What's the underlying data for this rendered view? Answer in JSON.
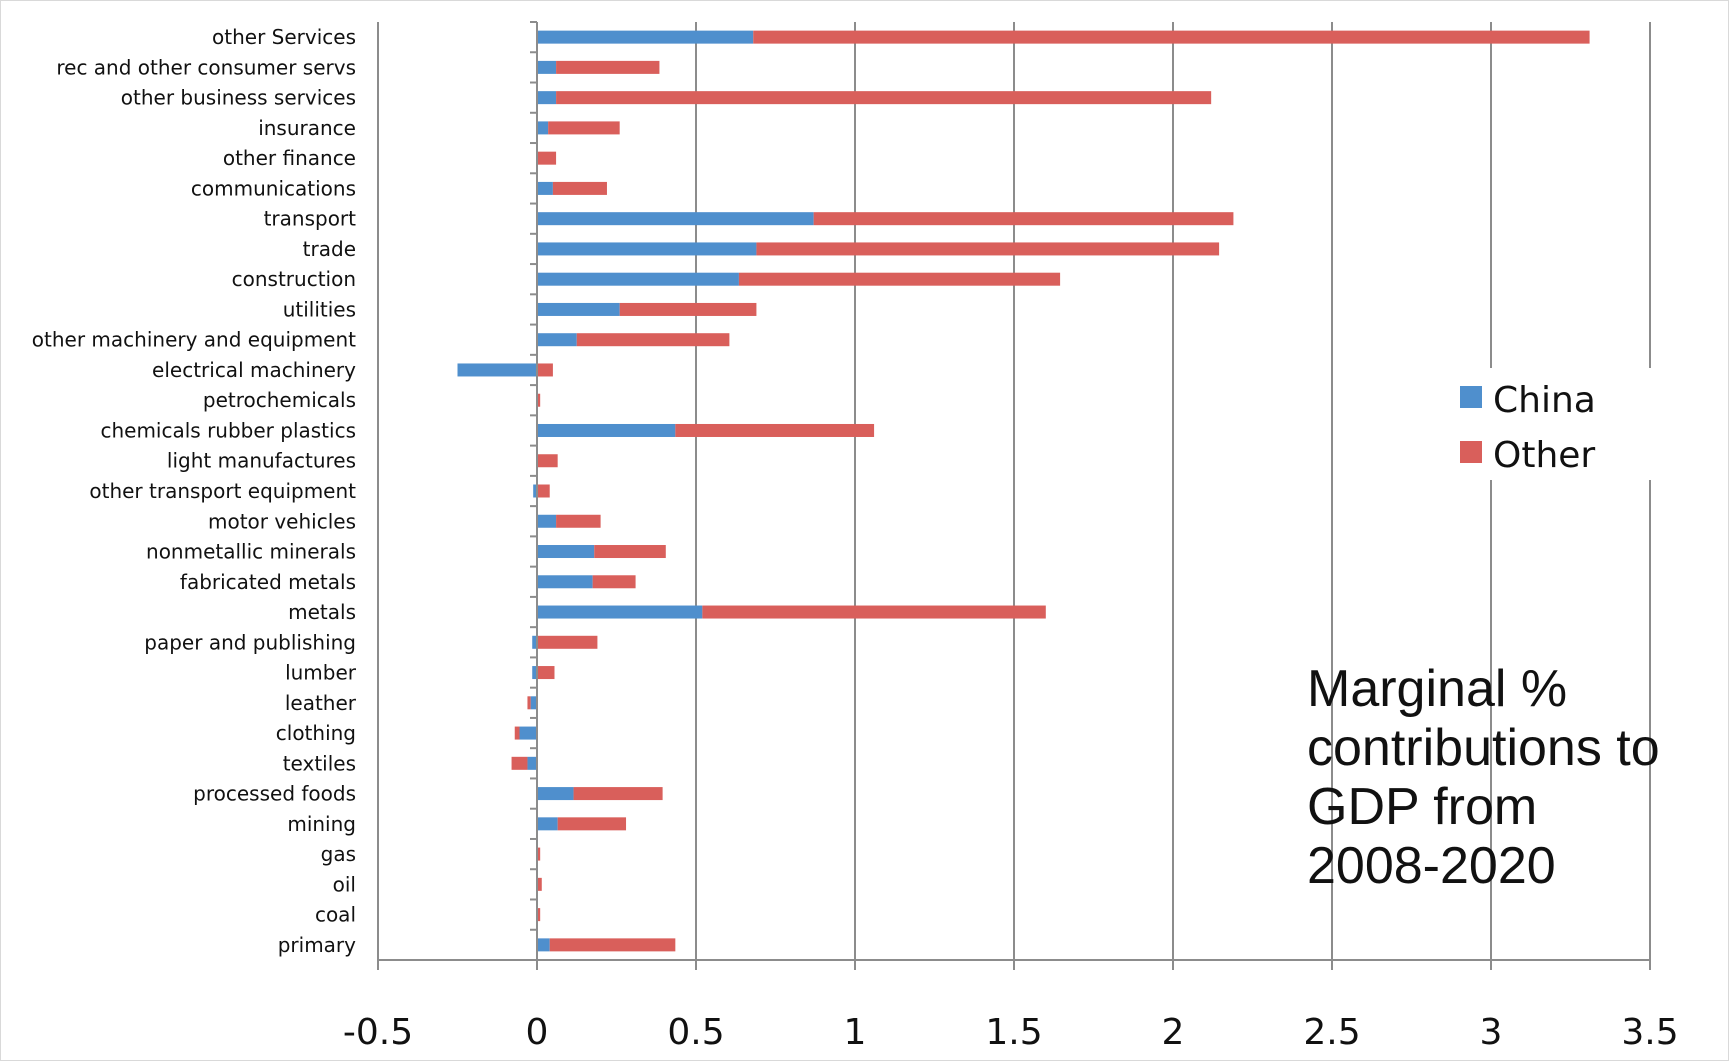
{
  "chart_data": {
    "type": "bar",
    "orientation": "horizontal",
    "stacked": true,
    "categories": [
      "other Services",
      "rec and other consumer servs",
      "other business services",
      "insurance",
      "other finance",
      "communications",
      "transport",
      "trade",
      "construction",
      "utilities",
      "other machinery and equipment",
      "electrical machinery",
      "petrochemicals",
      "chemicals rubber plastics",
      "light manufactures",
      "other transport equipment",
      "motor vehicles",
      "nonmetallic minerals",
      "fabricated metals",
      "metals",
      "paper and publishing",
      "lumber",
      "leather",
      "clothing",
      "textiles",
      "processed foods",
      "mining",
      "gas",
      "oil",
      "coal",
      "primary"
    ],
    "series": [
      {
        "name": "China",
        "color": "#4f8fcd",
        "values": [
          0.68,
          0.06,
          0.06,
          0.035,
          0.0,
          0.05,
          0.87,
          0.69,
          0.635,
          0.26,
          0.125,
          -0.25,
          0.0,
          0.435,
          0.0,
          -0.012,
          0.06,
          0.18,
          0.175,
          0.52,
          -0.015,
          -0.015,
          -0.02,
          -0.055,
          -0.03,
          0.115,
          0.065,
          0.0,
          0.0,
          0.0,
          0.04
        ]
      },
      {
        "name": "Other",
        "color": "#d95f5b",
        "values": [
          2.63,
          0.325,
          2.06,
          0.225,
          0.06,
          0.17,
          1.32,
          1.455,
          1.01,
          0.43,
          0.48,
          0.05,
          0.01,
          0.625,
          0.065,
          0.04,
          0.14,
          0.225,
          0.135,
          1.08,
          0.19,
          0.055,
          -0.01,
          -0.015,
          -0.05,
          0.28,
          0.215,
          0.01,
          0.015,
          0.01,
          0.395
        ]
      }
    ],
    "xlim": [
      -0.5,
      3.5
    ],
    "xticks": [
      "-0.5",
      "0",
      "0.5",
      "1",
      "1.5",
      "2",
      "2.5",
      "3",
      "3.5"
    ],
    "grid": true,
    "legend_position": "right",
    "annotation": [
      "Marginal %",
      "contributions to",
      "GDP from",
      "2008-2020"
    ]
  }
}
